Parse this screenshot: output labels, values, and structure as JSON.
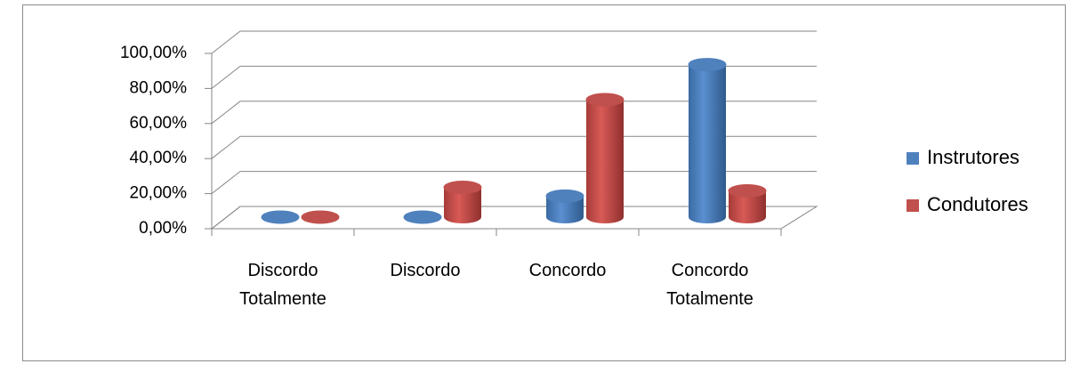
{
  "chart_data": {
    "type": "bar3d",
    "categories": [
      "Discordo Totalmente",
      "Discordo",
      "Concordo",
      "Concordo Totalmente"
    ],
    "series": [
      {
        "name": "Instrutores",
        "color": "#4f81bd",
        "values": [
          0,
          0,
          12,
          87
        ]
      },
      {
        "name": "Condutores",
        "color": "#c0504d",
        "values": [
          0,
          17,
          67,
          15
        ]
      }
    ],
    "ylim": [
      0,
      100
    ],
    "yticks": [
      {
        "value": 0,
        "label": "0,00%"
      },
      {
        "value": 20,
        "label": "20,00%"
      },
      {
        "value": 40,
        "label": "40,00%"
      },
      {
        "value": 60,
        "label": "60,00%"
      },
      {
        "value": 80,
        "label": "80,00%"
      },
      {
        "value": 100,
        "label": "100,00%"
      }
    ],
    "grid": true,
    "legend": "right"
  }
}
